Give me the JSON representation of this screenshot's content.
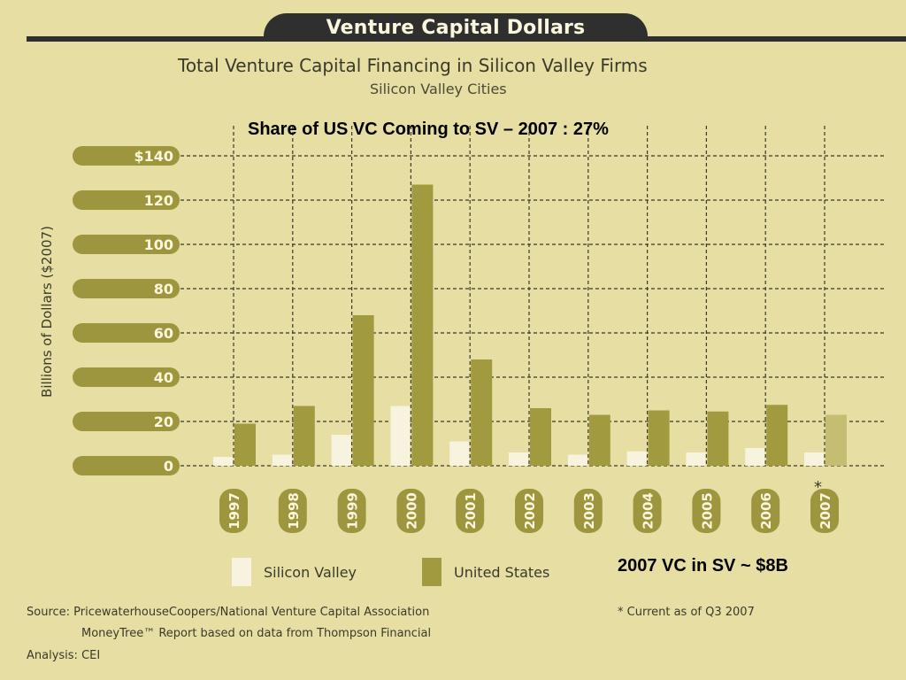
{
  "header": {
    "tab_title": "Venture Capital Dollars"
  },
  "title": "Total Venture Capital Financing in Silicon Valley Firms",
  "subtitle": "Silicon Valley Cities",
  "annotations": {
    "share": "Share of US VC Coming to SV – 2007 : 27%",
    "sv_2007": "2007 VC in SV ~ $8B",
    "asterisk": "*"
  },
  "legend": {
    "silicon_valley": "Silicon Valley",
    "united_states": "United States"
  },
  "footer": {
    "source_line1": "Source: PricewaterhouseCoopers/National Venture Capital Association",
    "source_line2": "MoneyTree™ Report based on data from Thompson Financial",
    "analysis": "Analysis: CEI",
    "note": "* Current as of Q3 2007"
  },
  "colors": {
    "background": "#e6dea3",
    "header_dark": "#2f2f2f",
    "silicon_valley": "#f7f3df",
    "united_states": "#a29a3f",
    "united_states_partial": "#c4bd72",
    "tick_pill": "#9e963e"
  },
  "chart_data": {
    "type": "bar",
    "title": "Total Venture Capital Financing in Silicon Valley Firms",
    "subtitle": "Silicon Valley Cities",
    "ylabel": "Billions of Dollars ($2007)",
    "ylim": [
      0,
      140
    ],
    "yticks": [
      "0",
      "20",
      "40",
      "60",
      "80",
      "100",
      "120",
      "$140"
    ],
    "grid": true,
    "legend_position": "bottom",
    "categories": [
      "1997",
      "1998",
      "1999",
      "2000",
      "2001",
      "2002",
      "2003",
      "2004",
      "2005",
      "2006",
      "2007"
    ],
    "series": [
      {
        "name": "Silicon Valley",
        "values": [
          4,
          5,
          14,
          27,
          11,
          6,
          5,
          6.5,
          6,
          8,
          6
        ]
      },
      {
        "name": "United States",
        "values": [
          19,
          27,
          68,
          127,
          48,
          26,
          23,
          25,
          24.5,
          27.5,
          23
        ]
      }
    ]
  }
}
